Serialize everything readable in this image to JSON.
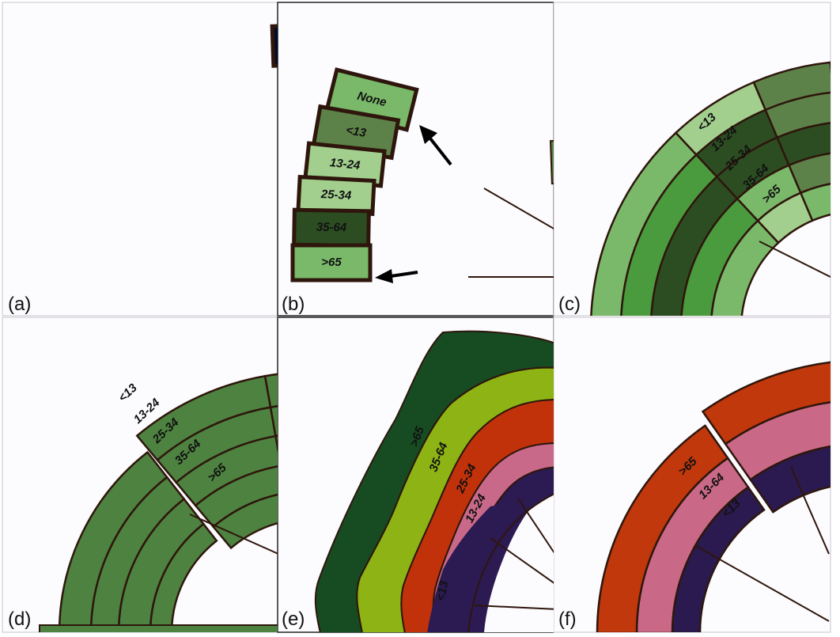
{
  "panels": [
    {
      "id": "a",
      "label": "(a)"
    },
    {
      "id": "b",
      "label": "(b)"
    },
    {
      "id": "c",
      "label": "(c)"
    },
    {
      "id": "d",
      "label": "(d)"
    },
    {
      "id": "e",
      "label": "(e)"
    },
    {
      "id": "f",
      "label": "(f)"
    }
  ],
  "legend_b": [
    "None",
    "<13",
    "13-24",
    "25-34",
    "35-64",
    ">65"
  ],
  "ring_labels_c": [
    "<13",
    "13-24",
    "25-34",
    "35-64",
    ">65"
  ],
  "ring_labels_d": [
    "<13",
    "13-24",
    "25-34",
    "35-64",
    ">65"
  ],
  "ring_labels_e": [
    ">65",
    "35-64",
    "25-34",
    "13-24",
    "<13"
  ],
  "ring_labels_f": [
    ">65",
    "13-64",
    "<13"
  ],
  "colors": {
    "panel_bg": "#fcfbfe",
    "outline": "#2e160c",
    "navy": [
      "#0b2348",
      "#022a86",
      "#0f3769",
      "#041a3f",
      "#0a1f4c",
      "#000c2b"
    ],
    "green_light": "#a2cf8e",
    "green_mid": "#7ab96a",
    "green_bright": "#4a9a3e",
    "green_dark": "#2c4d22",
    "green_olive": "#5d8249",
    "green_d": "#4d8240",
    "e_dark": "#174b22",
    "e_lime": "#8db414",
    "e_red": "#c1320a",
    "e_pink": "#c9698a",
    "e_purple": "#2c1a52",
    "f_red": "#c0380c",
    "f_pink": "#c96987",
    "f_purple": "#2b1a4f"
  }
}
